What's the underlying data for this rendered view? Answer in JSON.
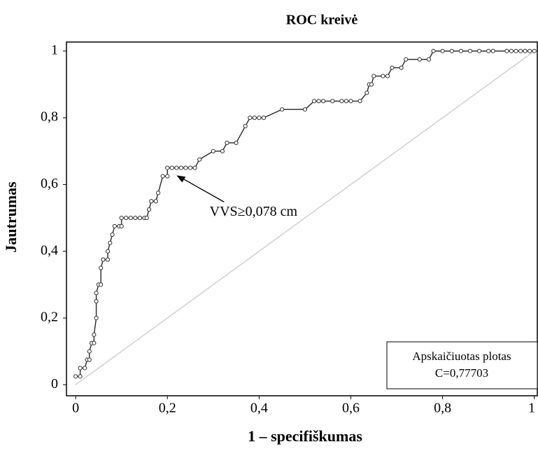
{
  "chart_data": {
    "type": "line",
    "title": "ROC kreivė",
    "xlabel": "1 – specifiškumas",
    "ylabel": "Jautrumas",
    "x": [
      0,
      0.01,
      0.01,
      0.02,
      0.025,
      0.03,
      0.03,
      0.035,
      0.04,
      0.04,
      0.045,
      0.045,
      0.045,
      0.05,
      0.055,
      0.055,
      0.06,
      0.07,
      0.07,
      0.075,
      0.08,
      0.085,
      0.095,
      0.1,
      0.1,
      0.11,
      0.12,
      0.13,
      0.14,
      0.15,
      0.155,
      0.16,
      0.165,
      0.175,
      0.18,
      0.19,
      0.2,
      0.2,
      0.21,
      0.22,
      0.23,
      0.24,
      0.25,
      0.26,
      0.27,
      0.3,
      0.32,
      0.33,
      0.35,
      0.37,
      0.38,
      0.39,
      0.4,
      0.41,
      0.45,
      0.5,
      0.52,
      0.53,
      0.54,
      0.56,
      0.58,
      0.59,
      0.6,
      0.62,
      0.635,
      0.64,
      0.645,
      0.65,
      0.67,
      0.68,
      0.69,
      0.71,
      0.72,
      0.75,
      0.77,
      0.78,
      0.8,
      0.82,
      0.84,
      0.86,
      0.88,
      0.9,
      0.91,
      0.94,
      0.95,
      0.96,
      0.97,
      0.98,
      0.99,
      1.0
    ],
    "values": [
      0.025,
      0.025,
      0.05,
      0.05,
      0.075,
      0.075,
      0.1,
      0.125,
      0.125,
      0.15,
      0.2,
      0.25,
      0.275,
      0.3,
      0.3,
      0.35,
      0.375,
      0.375,
      0.4,
      0.425,
      0.45,
      0.475,
      0.475,
      0.475,
      0.5,
      0.5,
      0.5,
      0.5,
      0.5,
      0.5,
      0.5,
      0.525,
      0.55,
      0.55,
      0.575,
      0.625,
      0.625,
      0.65,
      0.65,
      0.65,
      0.65,
      0.65,
      0.65,
      0.65,
      0.675,
      0.7,
      0.7,
      0.725,
      0.725,
      0.775,
      0.8,
      0.8,
      0.8,
      0.8,
      0.825,
      0.825,
      0.85,
      0.85,
      0.85,
      0.85,
      0.85,
      0.85,
      0.85,
      0.85,
      0.875,
      0.9,
      0.9,
      0.925,
      0.925,
      0.925,
      0.95,
      0.95,
      0.975,
      0.975,
      0.975,
      1,
      1,
      1,
      1,
      1,
      1,
      1,
      1,
      1,
      1,
      1,
      1,
      1,
      1,
      1
    ],
    "color": "#333333",
    "diagonal_color": "#d0d0d0",
    "xlim": [
      -0.02,
      1.008
    ],
    "ylim": [
      -0.033,
      1.027
    ],
    "xticks": [
      0,
      {
        "value": 0.2,
        "label": "0,2"
      },
      {
        "value": 0.4,
        "label": "0,4"
      },
      {
        "value": 0.6,
        "label": "0,6"
      },
      {
        "value": 0.8,
        "label": "0,8"
      },
      1
    ],
    "yticks": [
      0,
      {
        "value": 0.2,
        "label": "0,2"
      },
      {
        "value": 0.4,
        "label": "0,4"
      },
      {
        "value": 0.6,
        "label": "0,6"
      },
      {
        "value": 0.8,
        "label": "0,8"
      },
      1
    ],
    "annotation": {
      "text": "VVS≥0,078 cm",
      "x": 0.22,
      "y": 0.64
    },
    "note_lines": [
      "Apskaičiuotas plotas",
      "C=0,77703"
    ]
  }
}
